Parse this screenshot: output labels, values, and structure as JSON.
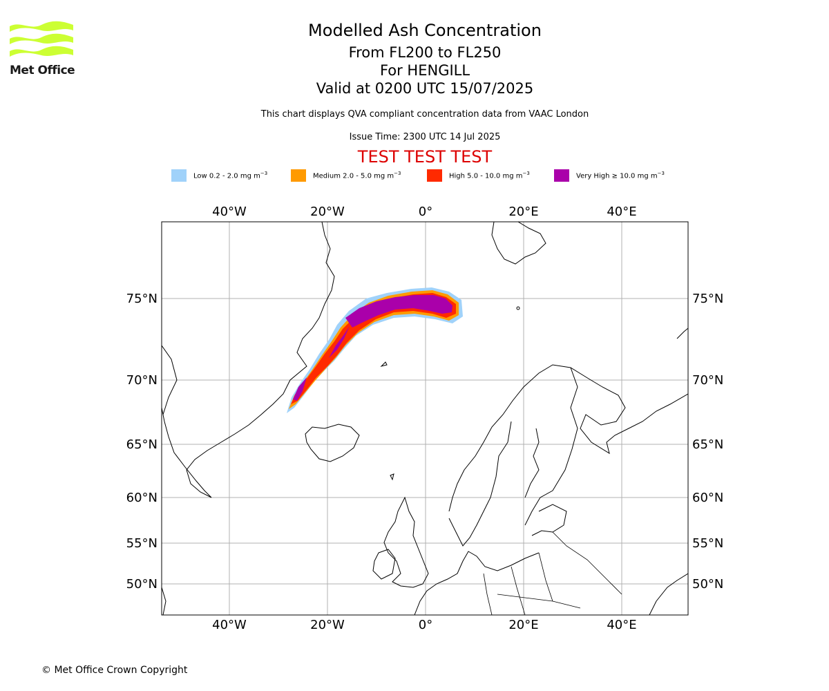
{
  "logo": {
    "text": "Met Office",
    "color": "#ccff33"
  },
  "header": {
    "title": "Modelled Ash Concentration",
    "level": "From FL200 to FL250",
    "volcano": "For HENGILL",
    "valid": "Valid at 0200 UTC 15/07/2025",
    "subtitle": "This chart displays QVA compliant concentration data from VAAC London",
    "issue_time": "Issue Time: 2300 UTC 14 Jul 2025",
    "banner": "TEST TEST TEST"
  },
  "legend": [
    {
      "label": "Low 0.2 - 2.0 mg m",
      "sup": "−3",
      "color": "#a0d2fa"
    },
    {
      "label": "Medium 2.0 - 5.0 mg m",
      "sup": "−3",
      "color": "#ff9a00"
    },
    {
      "label": "High 5.0 - 10.0 mg m",
      "sup": "−3",
      "color": "#ff2a00"
    },
    {
      "label": "Very High  ≥  10.0 mg m",
      "sup": "−3",
      "color": "#aa00aa"
    }
  ],
  "map": {
    "lon_ticks": [
      "40°W",
      "20°W",
      "0°",
      "20°E",
      "40°E"
    ],
    "lat_ticks": [
      "75°N",
      "70°N",
      "65°N",
      "60°N",
      "55°N",
      "50°N"
    ],
    "grid": true
  },
  "footer": {
    "copyright": "© Met Office Crown Copyright"
  }
}
